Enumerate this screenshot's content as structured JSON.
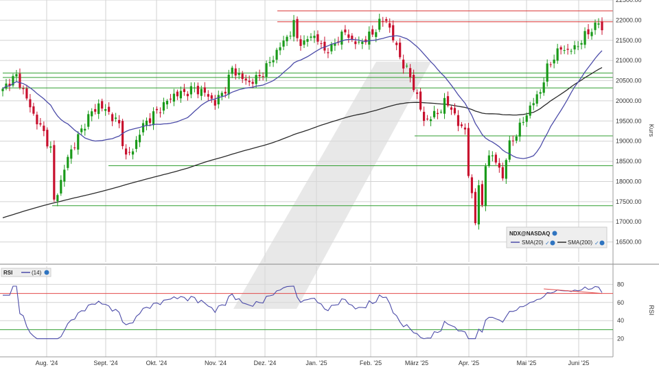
{
  "colors": {
    "background": "#ffffff",
    "grid": "#d2d2d2",
    "separator": "#9a9a9a",
    "axis_text": "#333333",
    "candle_up": "#1a9a1a",
    "candle_down": "#c8102e",
    "sma20": "#4b4ba8",
    "sma200": "#2a2a2a",
    "support_line": "#2f9e2f",
    "resistance_line": "#d93030",
    "rsi_line": "#4b4ba8",
    "rsi_upper": "#e24a4a",
    "rsi_lower": "#2f9e2f",
    "watermark": "#d9d9d9"
  },
  "icons": {
    "info": "info-circle-icon",
    "check": "check-icon",
    "watermark": "brand-logo-watermark"
  },
  "chart_data": [
    {
      "type": "candlestick",
      "legend": {
        "symbol": "NDX@NASDAQ",
        "sma20_label": "SMA(20)",
        "sma200_label": "SMA(200)",
        "placement": "bottom-right"
      },
      "ylabel": "Kurs",
      "ylim": [
        16000,
        22500
      ],
      "yticks": [
        "16500.00",
        "17000.00",
        "17500.00",
        "18000.00",
        "18500.00",
        "19000.00",
        "19500.00",
        "20000.00",
        "20500.00",
        "21000.00",
        "21500.00",
        "22000.00",
        "22500.00"
      ],
      "ytick_values": [
        16500,
        17000,
        17500,
        18000,
        18500,
        19000,
        19500,
        20000,
        20500,
        21000,
        21500,
        22000,
        22500
      ],
      "x_months": [
        "Aug. '24",
        "Sept. '24",
        "Okt. '24",
        "Nov. '24",
        "Dez. '24",
        "Jan. '25",
        "Feb. '25",
        "März '25",
        "Apr. '25",
        "Mai '25",
        "Juni '25"
      ],
      "price_anchors": [
        [
          0,
          20250
        ],
        [
          2,
          20500
        ],
        [
          4,
          20600
        ],
        [
          6,
          20250
        ],
        [
          9,
          19650
        ],
        [
          12,
          19200
        ],
        [
          14,
          18800
        ],
        [
          15,
          17500
        ],
        [
          17,
          18000
        ],
        [
          19,
          18600
        ],
        [
          22,
          19100
        ],
        [
          25,
          19600
        ],
        [
          28,
          19900
        ],
        [
          31,
          19700
        ],
        [
          34,
          19400
        ],
        [
          36,
          18600
        ],
        [
          38,
          18800
        ],
        [
          41,
          19400
        ],
        [
          44,
          19650
        ],
        [
          47,
          19900
        ],
        [
          50,
          20150
        ],
        [
          53,
          20200
        ],
        [
          56,
          20300
        ],
        [
          59,
          20200
        ],
        [
          62,
          19950
        ],
        [
          65,
          20300
        ],
        [
          67,
          20800
        ],
        [
          70,
          20550
        ],
        [
          72,
          20450
        ],
        [
          75,
          20600
        ],
        [
          78,
          20950
        ],
        [
          81,
          21350
        ],
        [
          84,
          21700
        ],
        [
          85,
          21900
        ],
        [
          86,
          21550
        ],
        [
          88,
          21400
        ],
        [
          90,
          21650
        ],
        [
          92,
          21500
        ],
        [
          94,
          21250
        ],
        [
          96,
          21300
        ],
        [
          98,
          21550
        ],
        [
          100,
          21700
        ],
        [
          102,
          21500
        ],
        [
          104,
          21400
        ],
        [
          106,
          21550
        ],
        [
          108,
          21650
        ],
        [
          110,
          21950
        ],
        [
          112,
          22000
        ],
        [
          113,
          21800
        ],
        [
          115,
          21300
        ],
        [
          117,
          20900
        ],
        [
          119,
          20600
        ],
        [
          121,
          20100
        ],
        [
          123,
          19500
        ],
        [
          125,
          19600
        ],
        [
          127,
          19700
        ],
        [
          129,
          19950
        ],
        [
          131,
          19850
        ],
        [
          133,
          19400
        ],
        [
          135,
          19300
        ],
        [
          136,
          18200
        ],
        [
          137,
          17600
        ],
        [
          138,
          17000
        ],
        [
          139,
          18000
        ],
        [
          140,
          17300
        ],
        [
          141,
          18400
        ],
        [
          142,
          18700
        ],
        [
          144,
          18500
        ],
        [
          146,
          18100
        ],
        [
          147,
          18600
        ],
        [
          148,
          18900
        ],
        [
          150,
          19200
        ],
        [
          152,
          19500
        ],
        [
          154,
          19850
        ],
        [
          156,
          20100
        ],
        [
          157,
          20250
        ],
        [
          159,
          20800
        ],
        [
          161,
          21100
        ],
        [
          163,
          21300
        ],
        [
          165,
          21250
        ],
        [
          167,
          21300
        ],
        [
          169,
          21500
        ],
        [
          171,
          21700
        ],
        [
          173,
          21850
        ],
        [
          174,
          21950
        ],
        [
          175,
          21750
        ]
      ],
      "horizontal_levels": [
        {
          "value": 22230,
          "color": "resistance"
        },
        {
          "value": 21960,
          "color": "resistance"
        },
        {
          "value": 20690,
          "color": "support"
        },
        {
          "value": 20580,
          "color": "support"
        },
        {
          "value": 20320,
          "color": "support"
        },
        {
          "value": 19130,
          "color": "support"
        },
        {
          "value": 18390,
          "color": "support"
        },
        {
          "value": 17400,
          "color": "support"
        }
      ],
      "series": [
        {
          "name": "NDX@NASDAQ",
          "kind": "candles"
        },
        {
          "name": "SMA(20)",
          "kind": "line"
        },
        {
          "name": "SMA(200)",
          "kind": "line"
        }
      ]
    },
    {
      "type": "line",
      "legend": {
        "label": "RSI",
        "period": "(14)",
        "placement": "top-left"
      },
      "ylabel": "RSI",
      "ylim": [
        0,
        100
      ],
      "yticks": [
        "20",
        "40",
        "60",
        "80"
      ],
      "ytick_values": [
        20,
        40,
        60,
        80
      ],
      "bands": [
        70,
        30
      ],
      "series": [
        {
          "name": "(14)",
          "source": "computed-from-price"
        }
      ]
    }
  ]
}
